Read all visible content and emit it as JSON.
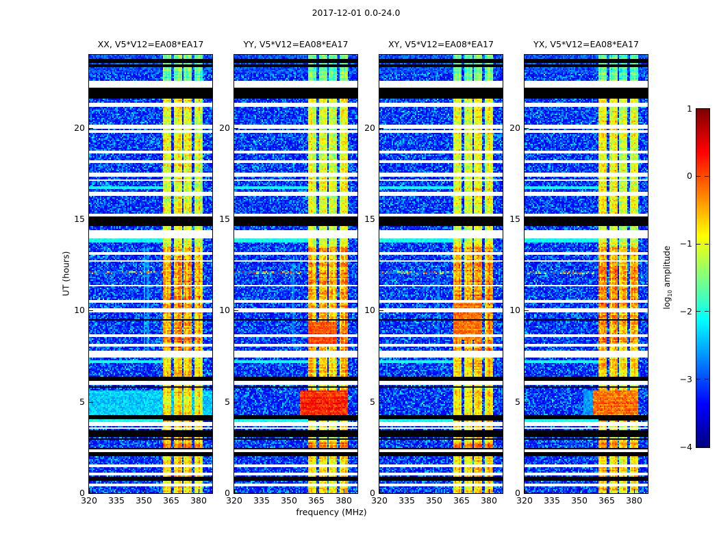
{
  "figure": {
    "title": "2017-12-01 0.0-24.0",
    "background": "#ffffff",
    "text_color": "#000000"
  },
  "chart_data": {
    "type": "heatmap",
    "title": "2017-12-01 0.0-24.0",
    "xlabel": "frequency (MHz)",
    "ylabel": "UT (hours)",
    "x_range": [
      320,
      387.5
    ],
    "y_range": [
      0,
      24
    ],
    "x_ticks": [
      320,
      335,
      350,
      365,
      380
    ],
    "y_ticks": [
      0,
      5,
      10,
      15,
      20
    ],
    "colormap": "jet",
    "value_range": [
      -4,
      1
    ],
    "grid": false,
    "colorbar": {
      "label_pre": "log",
      "label_sub": "10",
      "label_post": " amplitude",
      "tick_values": [
        1,
        0,
        -1,
        -2,
        -3,
        -4
      ],
      "tick_labels": [
        "1",
        "0",
        "−1",
        "−2",
        "−3",
        "−4"
      ]
    },
    "panels": [
      {
        "id": "XX",
        "title": "XX, V5*V12=EA08*EA17",
        "seed": 11,
        "bg_regions": [
          {
            "t": [
              3.95,
              5.65
            ],
            "f": [
              320,
              387.5
            ],
            "v": -2.45,
            "amp": 0.55
          }
        ],
        "vlines": [
          {
            "f": [
              349.8,
              350.9
            ],
            "t": [
              7.6,
              13.4
            ],
            "v": -2.55
          },
          {
            "f": [
              351.7,
              352.8
            ],
            "t": [
              7.6,
              13.4
            ],
            "v": -2.7
          }
        ],
        "blobs": []
      },
      {
        "id": "YY",
        "title": "YY, V5*V12=EA08*EA17",
        "seed": 22,
        "bg_regions": [],
        "vlines": [
          {
            "f": [
              351.8,
              352.9
            ],
            "t": [
              8.0,
              12.6
            ],
            "v": -2.8
          }
        ],
        "blobs": [
          {
            "t": [
              3.95,
              5.65
            ],
            "f": [
              356.0,
              382.6
            ],
            "v": 0.15,
            "amp": 0.6
          },
          {
            "t": [
              8.2,
              9.4
            ],
            "f": [
              360.8,
              376.6
            ],
            "v": -0.05,
            "amp": 0.5
          }
        ]
      },
      {
        "id": "XY",
        "title": "XY, V5*V12=EA08*EA17",
        "seed": 33,
        "bg_regions": [],
        "vlines": [
          {
            "f": [
              351.8,
              352.9
            ],
            "t": [
              8.2,
              12.4
            ],
            "v": -2.85
          }
        ],
        "blobs": [
          {
            "t": [
              8.4,
              10.6
            ],
            "f": [
              360.8,
              376.6
            ],
            "v": -0.2,
            "amp": 0.55
          }
        ]
      },
      {
        "id": "YX",
        "title": "YX, V5*V12=EA08*EA17",
        "seed": 44,
        "bg_regions": [
          {
            "t": [
              3.95,
              5.65
            ],
            "f": [
              352.0,
              360.8
            ],
            "v": -2.7,
            "amp": 0.5
          }
        ],
        "vlines": [],
        "blobs": [
          {
            "t": [
              3.95,
              5.65
            ],
            "f": [
              357.5,
              382.6
            ],
            "v": -0.2,
            "amp": 0.65
          }
        ]
      }
    ],
    "rfi_subbands": [
      [
        360.8,
        365.2
      ],
      [
        366.2,
        370.8
      ],
      [
        371.8,
        376.6
      ],
      [
        377.6,
        382.6
      ]
    ],
    "band_timeline": [
      {
        "t": [
          2.51,
          2.74
        ],
        "v": -0.35,
        "amp": 0.55
      },
      {
        "t": [
          22.54,
          24.01
        ],
        "v": -1.65,
        "amp": 0.55
      },
      {
        "t": [
          20.1,
          22.54
        ],
        "v": -1.0,
        "amp": 0.7
      },
      {
        "t": [
          15.08,
          20.1
        ],
        "v": -1.0,
        "amp": 0.7
      },
      {
        "t": [
          13.5,
          15.08
        ],
        "v": -1.1,
        "amp": 0.6
      },
      {
        "t": [
          7.8,
          13.5
        ],
        "v": -0.5,
        "amp": 0.8
      },
      {
        "t": [
          6.3,
          7.8
        ],
        "v": -0.7,
        "amp": 0.7
      },
      {
        "t": [
          0,
          6.3
        ],
        "v": -0.8,
        "amp": 0.65
      }
    ],
    "shared_bg_regions": [
      {
        "t": [
          23.0,
          24.0
        ],
        "v": -3.1,
        "amp": 1.0
      }
    ],
    "background": {
      "base": -3.45,
      "amp": 1.2,
      "speckle_prob": 0.007,
      "speckle_v": -2.1
    },
    "stripes": [
      [
        23.62,
        23.72,
        "black"
      ],
      [
        23.34,
        23.42,
        "black"
      ],
      [
        22.24,
        22.54,
        "white"
      ],
      [
        21.98,
        22.2,
        "black"
      ],
      [
        21.93,
        21.97,
        "white"
      ],
      [
        21.66,
        21.92,
        "black"
      ],
      [
        21.19,
        21.3,
        "white"
      ],
      [
        19.99,
        20.1,
        "white"
      ],
      [
        19.78,
        19.84,
        "white"
      ],
      [
        18.64,
        18.75,
        "white"
      ],
      [
        18.14,
        18.19,
        "white"
      ],
      [
        17.36,
        17.51,
        "white"
      ],
      [
        17.13,
        17.17,
        "white"
      ],
      [
        16.69,
        16.76,
        "cyan"
      ],
      [
        16.4,
        16.46,
        "white"
      ],
      [
        16.29,
        16.35,
        "white"
      ],
      [
        15.19,
        15.25,
        "white"
      ],
      [
        14.66,
        15.08,
        "black"
      ],
      [
        13.99,
        14.33,
        "white"
      ],
      [
        13.8,
        13.95,
        "cyan"
      ],
      [
        13.09,
        13.13,
        "white"
      ],
      [
        12.71,
        12.75,
        "white"
      ],
      [
        12.04,
        12.1,
        "speckle"
      ],
      [
        11.33,
        11.38,
        "white"
      ],
      [
        10.46,
        10.51,
        "white"
      ],
      [
        10.0,
        10.06,
        "white"
      ],
      [
        9.93,
        9.98,
        "white"
      ],
      [
        9.47,
        9.52,
        "black"
      ],
      [
        8.61,
        8.66,
        "white"
      ],
      [
        8.1,
        8.15,
        "white"
      ],
      [
        7.63,
        7.76,
        "white"
      ],
      [
        7.49,
        7.6,
        "white"
      ],
      [
        7.2,
        7.25,
        "cyan"
      ],
      [
        6.26,
        6.32,
        "black"
      ],
      [
        6.15,
        6.21,
        "black"
      ],
      [
        6.0,
        6.08,
        "white"
      ],
      [
        5.78,
        5.83,
        "black"
      ],
      [
        4.2,
        4.25,
        "black"
      ],
      [
        4.03,
        4.08,
        "black"
      ],
      [
        3.9,
        3.99,
        "cyan"
      ],
      [
        3.68,
        3.83,
        "white"
      ],
      [
        3.53,
        3.6,
        "white"
      ],
      [
        3.3,
        3.38,
        "black"
      ],
      [
        3.11,
        3.19,
        "black"
      ],
      [
        2.93,
        3.0,
        "black"
      ],
      [
        2.4,
        2.45,
        "black"
      ],
      [
        2.3,
        2.36,
        "white"
      ],
      [
        2.18,
        2.24,
        "black"
      ],
      [
        2.1,
        2.15,
        "black"
      ],
      [
        1.46,
        1.57,
        "white"
      ],
      [
        1.05,
        1.12,
        "white"
      ],
      [
        0.79,
        0.84,
        "black"
      ],
      [
        0.68,
        0.72,
        "black"
      ],
      [
        0.45,
        0.5,
        "white"
      ]
    ]
  }
}
